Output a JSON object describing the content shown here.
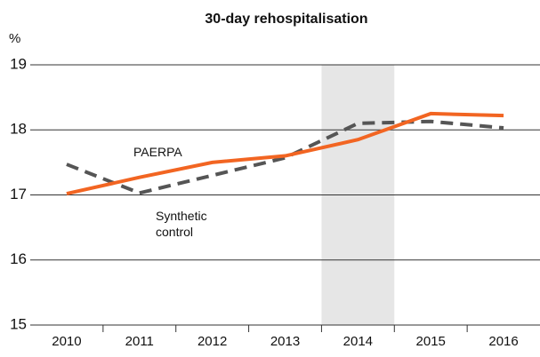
{
  "chart_data": {
    "type": "line",
    "title": "30-day rehospitalisation",
    "y_label": "%",
    "categories": [
      "2010",
      "2011",
      "2012",
      "2013",
      "2014",
      "2015",
      "2016"
    ],
    "series": [
      {
        "name": "PAERPA",
        "color": "#f26522",
        "dashed": false,
        "values": [
          17.02,
          17.27,
          17.5,
          17.6,
          17.85,
          18.25,
          18.22
        ]
      },
      {
        "name": "Synthetic control",
        "color": "#555555",
        "dashed": true,
        "values": [
          17.47,
          17.03,
          17.3,
          17.57,
          18.1,
          18.13,
          18.03
        ]
      }
    ],
    "shaded_category": "2014",
    "shade_color": "#e6e6e6",
    "ylim": [
      15,
      19
    ],
    "yticks": [
      15,
      16,
      17,
      18,
      19
    ],
    "grid": true
  }
}
